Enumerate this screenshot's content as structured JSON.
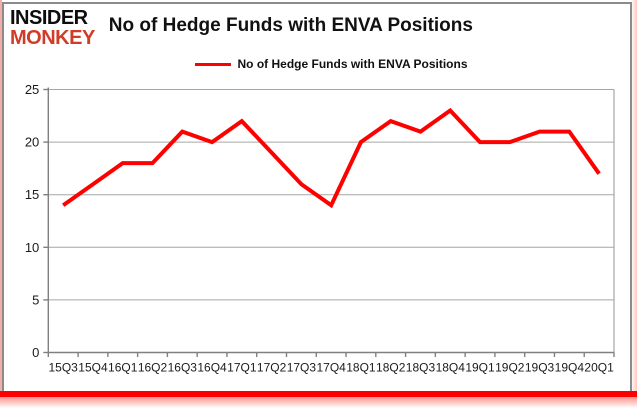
{
  "branding": {
    "line1": "INSIDER",
    "line2": "MONKEY",
    "line1_color": "#0d0d0d",
    "line2_color": "#d13b28"
  },
  "header": {
    "title": "No of Hedge Funds with ENVA Positions"
  },
  "legend": {
    "label": "No of Hedge Funds with ENVA Positions",
    "line_color": "#ff0000",
    "position": "top"
  },
  "chart_data": {
    "type": "line",
    "title": "No of Hedge Funds with ENVA Positions",
    "categories": [
      "15Q3",
      "15Q4",
      "16Q1",
      "16Q2",
      "16Q3",
      "16Q4",
      "17Q1",
      "17Q2",
      "17Q3",
      "17Q4",
      "18Q1",
      "18Q2",
      "18Q3",
      "18Q4",
      "19Q1",
      "19Q2",
      "19Q3",
      "19Q4",
      "20Q1"
    ],
    "series": [
      {
        "name": "No of Hedge Funds with ENVA Positions",
        "values": [
          14,
          16,
          18,
          18,
          21,
          20,
          22,
          19,
          16,
          14,
          20,
          22,
          21,
          23,
          20,
          20,
          21,
          21,
          17
        ],
        "color": "#ff0000"
      }
    ],
    "xlabel": "",
    "ylabel": "",
    "ylim": [
      0,
      25
    ],
    "yticks": [
      0,
      5,
      10,
      15,
      20,
      25
    ],
    "grid": true,
    "grid_color": "#a6a6a6",
    "axis_color": "#808080",
    "tick_label_color": "#1a1a1a",
    "legend_position": "top"
  },
  "accent": {
    "bottom_bar_color": "#ff0000"
  }
}
